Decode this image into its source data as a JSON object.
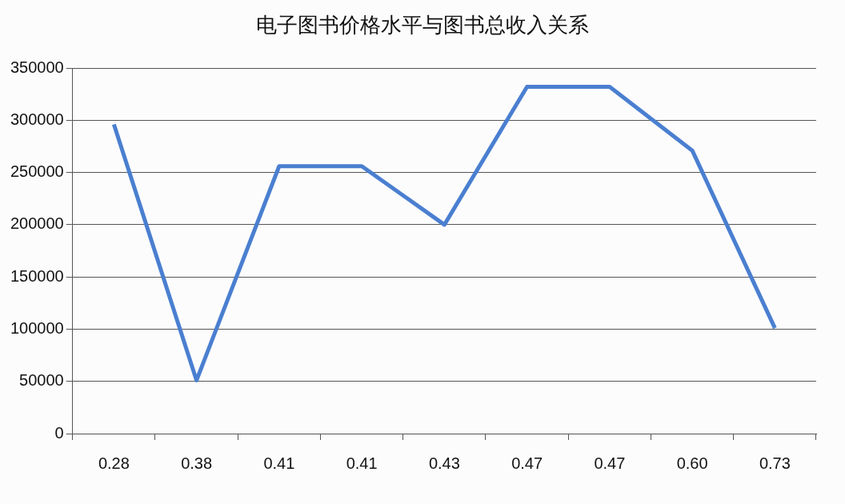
{
  "chart_data": {
    "type": "line",
    "title": "电子图书价格水平与图书总收入关系",
    "categories": [
      "0.28",
      "0.38",
      "0.41",
      "0.41",
      "0.43",
      "0.47",
      "0.47",
      "0.60",
      "0.73"
    ],
    "series": [
      {
        "color": "#4a7fd0",
        "values": [
          296000,
          51000,
          256000,
          256000,
          200000,
          332000,
          332000,
          271000,
          101000
        ]
      }
    ],
    "ylim": [
      0,
      350000
    ],
    "yticks": [
      0,
      50000,
      100000,
      150000,
      200000,
      250000,
      300000,
      350000
    ],
    "grid": "y",
    "legend": false,
    "marker": "none",
    "line_style": "solid"
  }
}
